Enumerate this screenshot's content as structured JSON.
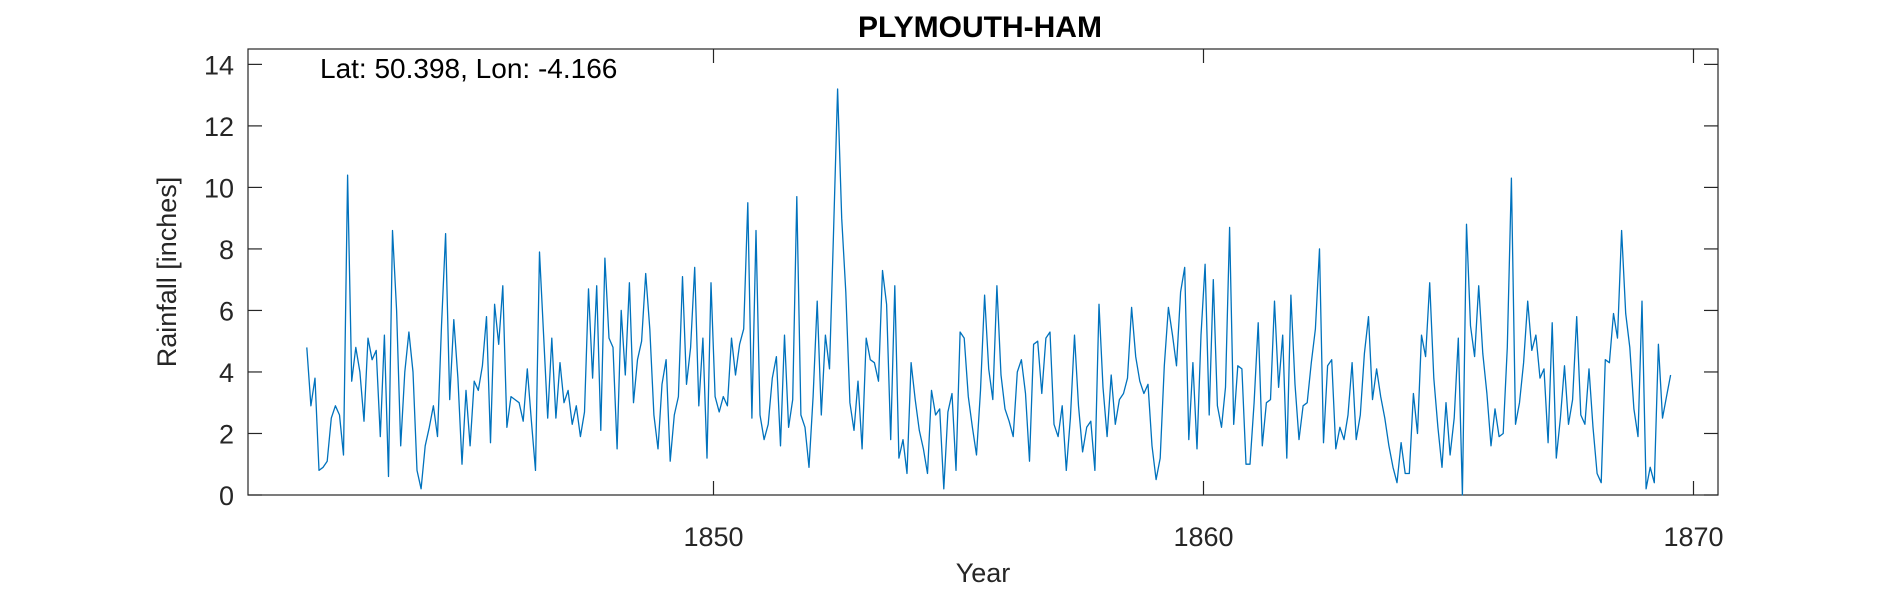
{
  "chart_data": {
    "type": "line",
    "title": "PLYMOUTH-HAM",
    "annotation": "Lat: 50.398, Lon: -4.166",
    "xlabel": "Year",
    "ylabel": "Rainfall [inches]",
    "xlim": [
      1840.5,
      1870.5
    ],
    "ylim": [
      0,
      14.5
    ],
    "xticks": [
      1850,
      1860,
      1870
    ],
    "yticks": [
      0,
      2,
      4,
      6,
      8,
      10,
      12,
      14
    ],
    "grid": false,
    "line_color": "#0072BD",
    "start_year": 1841.7,
    "step_years": 0.0833333,
    "series": [
      {
        "values": [
          4.8,
          2.9,
          3.8,
          0.8,
          0.9,
          1.1,
          2.5,
          2.9,
          2.6,
          1.3,
          10.4,
          3.7,
          4.8,
          4.0,
          2.4,
          5.1,
          4.4,
          4.7,
          1.9,
          5.2,
          0.6,
          8.6,
          6.0,
          1.6,
          4.0,
          5.3,
          4.0,
          0.8,
          0.2,
          1.6,
          2.2,
          2.9,
          1.9,
          5.5,
          8.5,
          3.1,
          5.7,
          3.8,
          1.0,
          3.4,
          1.6,
          3.7,
          3.4,
          4.2,
          5.8,
          1.7,
          6.2,
          4.9,
          6.8,
          2.2,
          3.2,
          3.1,
          3.0,
          2.4,
          4.1,
          2.4,
          0.8,
          7.9,
          5.2,
          2.5,
          5.1,
          2.5,
          4.3,
          3.0,
          3.4,
          2.3,
          2.9,
          1.9,
          2.7,
          6.7,
          3.8,
          6.8,
          2.1,
          7.7,
          5.1,
          4.8,
          1.5,
          6.0,
          3.9,
          6.9,
          3.0,
          4.4,
          5.0,
          7.2,
          5.4,
          2.6,
          1.5,
          3.6,
          4.4,
          1.1,
          2.6,
          3.2,
          7.1,
          3.6,
          4.8,
          7.4,
          2.9,
          5.1,
          1.2,
          6.9,
          3.2,
          2.7,
          3.2,
          2.9,
          5.1,
          3.9,
          4.9,
          5.4,
          9.5,
          2.5,
          8.6,
          2.6,
          1.8,
          2.3,
          3.8,
          4.5,
          1.6,
          5.2,
          2.2,
          3.1,
          9.7,
          2.6,
          2.2,
          0.9,
          3.2,
          6.3,
          2.6,
          5.2,
          4.1,
          8.5,
          13.2,
          9.0,
          6.6,
          3.0,
          2.1,
          3.7,
          1.5,
          5.1,
          4.4,
          4.3,
          3.7,
          7.3,
          6.2,
          1.8,
          6.8,
          1.2,
          1.8,
          0.7,
          4.3,
          3.1,
          2.1,
          1.5,
          0.7,
          3.4,
          2.6,
          2.8,
          0.2,
          2.7,
          3.3,
          0.8,
          5.3,
          5.1,
          3.2,
          2.2,
          1.3,
          3.4,
          6.5,
          4.1,
          3.1,
          6.8,
          3.9,
          2.8,
          2.4,
          1.9,
          4.0,
          4.4,
          3.3,
          1.1,
          4.9,
          5.0,
          3.3,
          5.1,
          5.3,
          2.3,
          1.9,
          2.9,
          0.8,
          2.5,
          5.2,
          2.9,
          1.4,
          2.2,
          2.4,
          0.8,
          6.2,
          3.5,
          1.9,
          3.9,
          2.3,
          3.1,
          3.3,
          3.8,
          6.1,
          4.5,
          3.7,
          3.3,
          3.6,
          1.6,
          0.5,
          1.2,
          4.2,
          6.1,
          5.2,
          4.2,
          6.6,
          7.4,
          1.8,
          4.3,
          1.5,
          5.2,
          7.5,
          2.6,
          7.0,
          2.9,
          2.2,
          3.5,
          8.7,
          2.3,
          4.2,
          4.1,
          1.0,
          1.0,
          3.0,
          5.6,
          1.6,
          3.0,
          3.1,
          6.3,
          3.5,
          5.2,
          1.2,
          6.5,
          3.6,
          1.8,
          2.9,
          3.0,
          4.3,
          5.4,
          8.0,
          1.7,
          4.2,
          4.4,
          1.5,
          2.2,
          1.8,
          2.6,
          4.3,
          1.8,
          2.6,
          4.6,
          5.8,
          3.1,
          4.1,
          3.2,
          2.5,
          1.6,
          0.9,
          0.4,
          1.7,
          0.7,
          0.7,
          3.3,
          2.0,
          5.2,
          4.5,
          6.9,
          3.8,
          2.2,
          0.9,
          3.0,
          1.3,
          2.5,
          5.1,
          0.0,
          8.8,
          5.5,
          4.5,
          6.8,
          4.6,
          3.3,
          1.6,
          2.8,
          1.9,
          2.0,
          4.8,
          10.3,
          2.3,
          3.0,
          4.3,
          6.3,
          4.7,
          5.2,
          3.8,
          4.1,
          1.7,
          5.6,
          1.2,
          2.5,
          4.2,
          2.3,
          3.1,
          5.8,
          2.6,
          2.3,
          4.1,
          2.2,
          0.7,
          0.4,
          4.4,
          4.3,
          5.9,
          5.1,
          8.6,
          5.9,
          4.8,
          2.8,
          1.9,
          6.3,
          0.2,
          0.9,
          0.4,
          4.9,
          2.5,
          3.2,
          3.9
        ]
      }
    ]
  }
}
